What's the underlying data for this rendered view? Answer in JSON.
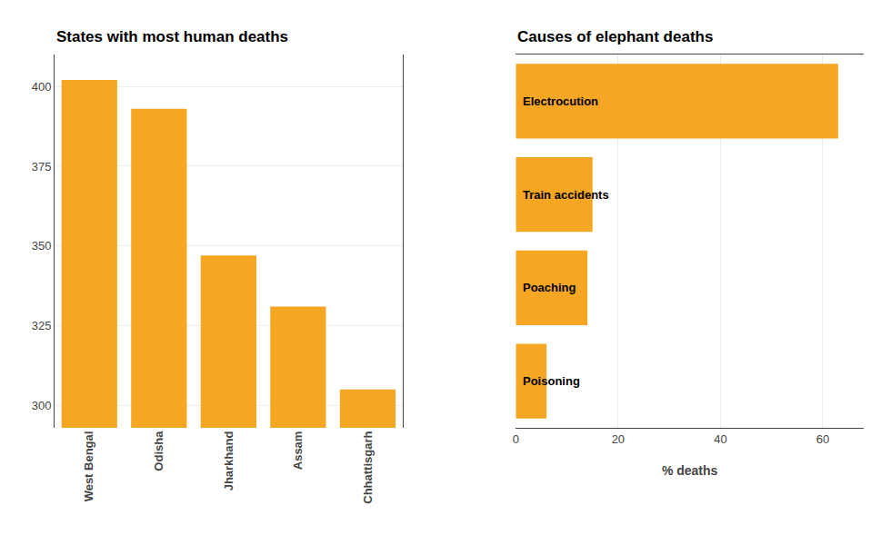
{
  "chart_data": [
    {
      "type": "bar",
      "title": "States with most human deaths",
      "categories": [
        "West Bengal",
        "Odisha",
        "Jharkhand",
        "Assam",
        "Chhattisgarh"
      ],
      "values": [
        402,
        393,
        347,
        331,
        305
      ],
      "color": "#F5A623",
      "ylim": [
        293,
        410
      ],
      "yticks": [
        300,
        325,
        350,
        375,
        400
      ],
      "grid": true
    },
    {
      "type": "bar",
      "orientation": "horizontal",
      "title": "Causes of elephant deaths",
      "categories": [
        "Electrocution",
        "Train accidents",
        "Poaching",
        "Poisoning"
      ],
      "values": [
        63,
        15,
        14,
        6
      ],
      "color": "#F5A623",
      "xlim": [
        0,
        68
      ],
      "xticks": [
        0,
        20,
        40,
        60
      ],
      "xlabel": "% deaths",
      "grid": true,
      "tick_labels": "x"
    }
  ]
}
